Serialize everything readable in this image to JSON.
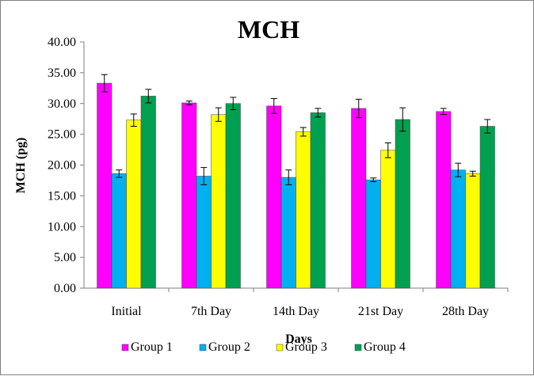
{
  "chart_data": {
    "type": "bar",
    "title": "MCH",
    "xlabel": "Days",
    "ylabel": "MCH (pg)",
    "ylim": [
      0,
      40
    ],
    "yticks": [
      "0.00",
      "5.00",
      "10.00",
      "15.00",
      "20.00",
      "25.00",
      "30.00",
      "35.00",
      "40.00"
    ],
    "categories": [
      "Initial",
      "7th Day",
      "14th Day",
      "21st Day",
      "28th Day"
    ],
    "grid": false,
    "legend_position": "bottom",
    "series": [
      {
        "name": "Group 1",
        "color": "#ff00ff",
        "values": [
          33.3,
          30.1,
          29.6,
          29.2,
          28.7
        ],
        "errors": [
          1.4,
          0.3,
          1.2,
          1.5,
          0.5
        ]
      },
      {
        "name": "Group 2",
        "color": "#00b0f0",
        "values": [
          18.6,
          18.2,
          18.0,
          17.6,
          19.2
        ],
        "errors": [
          0.6,
          1.4,
          1.2,
          0.3,
          1.1
        ]
      },
      {
        "name": "Group 3",
        "color": "#ffff00",
        "values": [
          27.3,
          28.2,
          25.4,
          22.4,
          18.6
        ],
        "errors": [
          1.0,
          1.1,
          0.7,
          1.2,
          0.4
        ]
      },
      {
        "name": "Group 4",
        "color": "#00a050",
        "values": [
          31.2,
          30.0,
          28.5,
          27.4,
          26.3
        ],
        "errors": [
          1.1,
          1.0,
          0.7,
          1.9,
          1.1
        ]
      }
    ]
  }
}
